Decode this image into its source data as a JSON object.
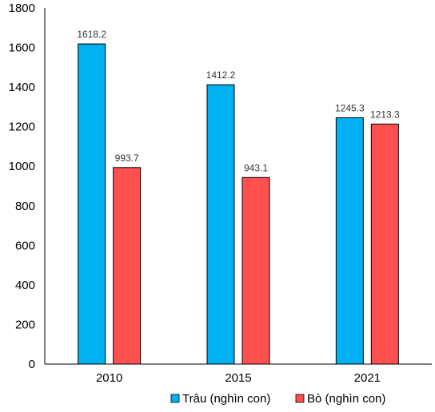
{
  "chart_data": {
    "type": "bar",
    "categories": [
      "2010",
      "2015",
      "2021"
    ],
    "series": [
      {
        "name": "Trâu (nghìn con)",
        "values": [
          1618.2,
          1412.2,
          1245.3
        ],
        "labels": [
          "1618.2",
          "1412.2",
          "1245.3"
        ],
        "color": "#00B0F0"
      },
      {
        "name": "Bò (nghìn con)",
        "values": [
          993.7,
          943.1,
          1213.3
        ],
        "labels": [
          "993.7",
          "943.1",
          "1213.3"
        ],
        "color": "#FF5050"
      }
    ],
    "y_ticks": [
      "0",
      "200",
      "400",
      "600",
      "800",
      "1000",
      "1200",
      "1400",
      "1600",
      "1800"
    ],
    "ylim": [
      0,
      1800
    ],
    "grid": false,
    "legend_position": "bottom"
  }
}
